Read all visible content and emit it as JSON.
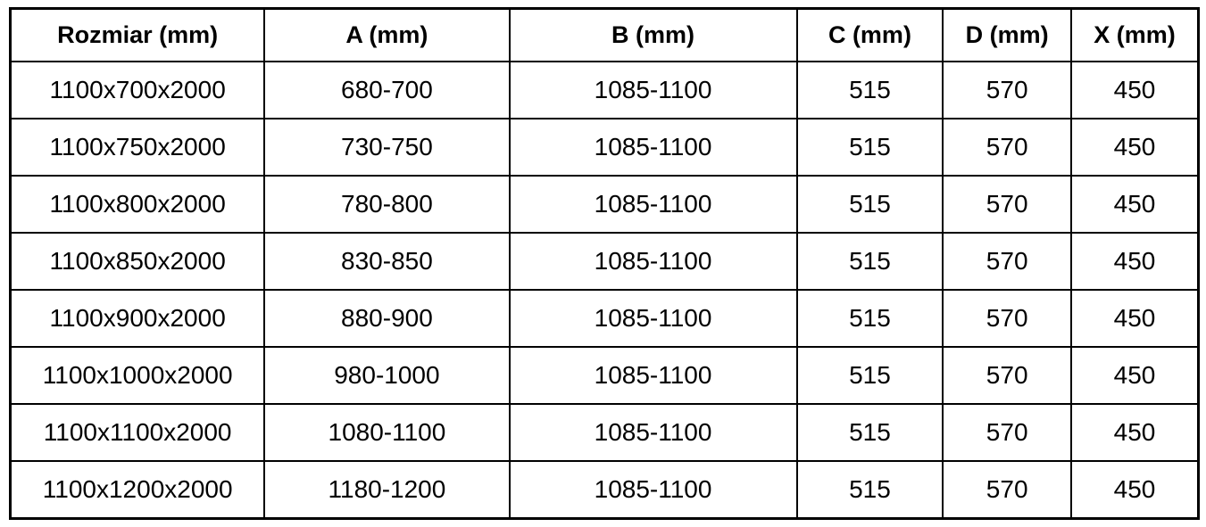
{
  "colors": {
    "border": "#000000",
    "text": "#000000",
    "background": "#ffffff"
  },
  "table": {
    "headers": [
      "Rozmiar (mm)",
      "A (mm)",
      "B (mm)",
      "C (mm)",
      "D (mm)",
      "X (mm)"
    ],
    "rows": [
      [
        "1100x700x2000",
        "680-700",
        "1085-1100",
        "515",
        "570",
        "450"
      ],
      [
        "1100x750x2000",
        "730-750",
        "1085-1100",
        "515",
        "570",
        "450"
      ],
      [
        "1100x800x2000",
        "780-800",
        "1085-1100",
        "515",
        "570",
        "450"
      ],
      [
        "1100x850x2000",
        "830-850",
        "1085-1100",
        "515",
        "570",
        "450"
      ],
      [
        "1100x900x2000",
        "880-900",
        "1085-1100",
        "515",
        "570",
        "450"
      ],
      [
        "1100x1000x2000",
        "980-1000",
        "1085-1100",
        "515",
        "570",
        "450"
      ],
      [
        "1100x1100x2000",
        "1080-1100",
        "1085-1100",
        "515",
        "570",
        "450"
      ],
      [
        "1100x1200x2000",
        "1180-1200",
        "1085-1100",
        "515",
        "570",
        "450"
      ]
    ],
    "column_widths_pct": [
      21.4,
      20.6,
      24.2,
      12.3,
      10.8,
      10.7
    ]
  },
  "chart_data": {
    "type": "table",
    "title": "",
    "columns": [
      "Rozmiar (mm)",
      "A (mm)",
      "B (mm)",
      "C (mm)",
      "D (mm)",
      "X (mm)"
    ],
    "rows": [
      [
        "1100x700x2000",
        "680-700",
        "1085-1100",
        "515",
        "570",
        "450"
      ],
      [
        "1100x750x2000",
        "730-750",
        "1085-1100",
        "515",
        "570",
        "450"
      ],
      [
        "1100x800x2000",
        "780-800",
        "1085-1100",
        "515",
        "570",
        "450"
      ],
      [
        "1100x850x2000",
        "830-850",
        "1085-1100",
        "515",
        "570",
        "450"
      ],
      [
        "1100x900x2000",
        "880-900",
        "1085-1100",
        "515",
        "570",
        "450"
      ],
      [
        "1100x1000x2000",
        "980-1000",
        "1085-1100",
        "515",
        "570",
        "450"
      ],
      [
        "1100x1100x2000",
        "1080-1100",
        "1085-1100",
        "515",
        "570",
        "450"
      ],
      [
        "1100x1200x2000",
        "1180-1200",
        "1085-1100",
        "515",
        "570",
        "450"
      ]
    ]
  }
}
